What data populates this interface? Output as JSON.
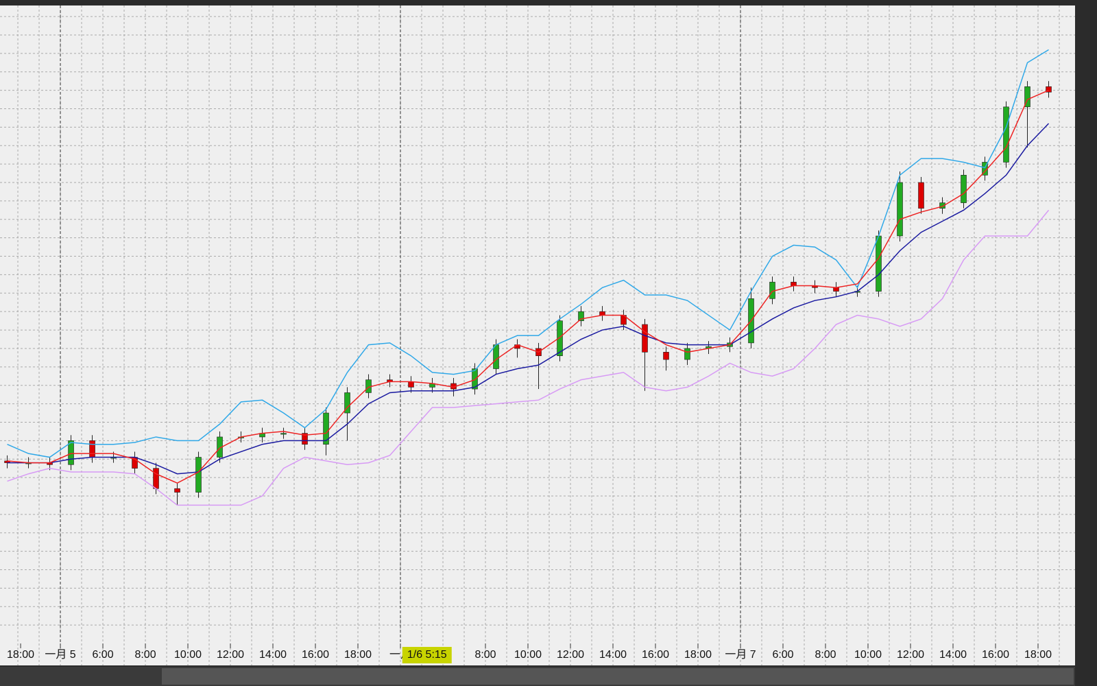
{
  "chart_data": {
    "type": "candlestick",
    "x": [
      -2.5,
      -1.5,
      -0.5,
      0.5,
      1.5,
      2.5,
      3.5,
      4.5,
      5.5,
      6.5,
      7.5,
      8.5,
      9.5,
      10.5,
      11.5,
      12.5,
      13.5,
      14.5,
      15.5,
      16.5,
      17.5,
      18.5,
      19.5,
      20.5,
      21.5,
      22.5,
      23.5,
      24.5,
      25.5,
      26.5,
      27.5,
      28.5,
      29.5,
      30.5,
      31.5,
      32.5,
      33.5,
      34.5,
      35.5,
      36.5,
      37.5,
      38.5,
      39.5,
      40.5,
      41.5,
      42.5,
      43.5,
      44.5,
      45.5,
      46.5
    ],
    "open": [
      9.9,
      9.8,
      9.8,
      9.7,
      11.0,
      10.1,
      10.1,
      9.5,
      8.4,
      8.2,
      10.1,
      11.2,
      11.2,
      11.4,
      11.4,
      10.8,
      12.5,
      13.6,
      14.3,
      14.2,
      13.9,
      14.1,
      13.8,
      14.9,
      16.2,
      16.0,
      15.6,
      17.5,
      18.0,
      17.8,
      17.3,
      15.8,
      15.4,
      16.0,
      16.1,
      16.3,
      18.7,
      19.6,
      19.4,
      19.3,
      19.1,
      19.1,
      22.1,
      25.0,
      23.6,
      23.9,
      25.4,
      26.1,
      29.1,
      30.2
    ],
    "high": [
      10.2,
      10.1,
      10.1,
      11.3,
      11.3,
      10.4,
      10.4,
      9.8,
      8.7,
      10.4,
      11.5,
      11.5,
      11.7,
      11.7,
      11.7,
      12.8,
      13.9,
      14.6,
      14.6,
      14.5,
      14.4,
      14.4,
      15.2,
      16.5,
      16.5,
      16.3,
      17.8,
      18.3,
      18.3,
      18.1,
      17.6,
      16.1,
      16.3,
      16.4,
      16.6,
      19.3,
      19.9,
      19.9,
      19.7,
      19.6,
      19.4,
      22.4,
      25.6,
      25.3,
      24.2,
      25.7,
      26.4,
      29.4,
      30.5,
      30.5
    ],
    "low": [
      9.5,
      9.5,
      9.4,
      9.4,
      9.8,
      9.8,
      9.2,
      8.1,
      7.5,
      7.9,
      9.8,
      10.9,
      10.9,
      11.1,
      10.5,
      10.2,
      11.0,
      13.3,
      13.9,
      13.6,
      13.6,
      13.4,
      13.5,
      14.6,
      15.5,
      13.8,
      15.3,
      17.2,
      17.5,
      17.0,
      13.7,
      14.8,
      15.1,
      15.7,
      15.8,
      16.0,
      18.4,
      19.1,
      19.0,
      18.8,
      18.8,
      18.8,
      21.8,
      23.3,
      23.3,
      23.6,
      25.1,
      25.8,
      26.9,
      29.6
    ],
    "close": [
      9.8,
      9.8,
      9.7,
      11.0,
      10.1,
      10.1,
      9.5,
      8.4,
      8.2,
      10.1,
      11.2,
      11.2,
      11.4,
      11.4,
      10.8,
      12.5,
      13.6,
      14.3,
      14.2,
      13.9,
      14.1,
      13.8,
      14.9,
      16.2,
      16.0,
      15.6,
      17.5,
      18.0,
      17.8,
      17.3,
      15.8,
      15.4,
      16.0,
      16.1,
      16.3,
      18.7,
      19.6,
      19.4,
      19.3,
      19.1,
      19.1,
      22.1,
      25.0,
      23.6,
      23.9,
      25.4,
      26.1,
      29.1,
      30.2,
      29.9
    ],
    "up_color": "#22aa22",
    "down_color": "#dd0000",
    "lines": [
      {
        "color": "#2fa8e8",
        "values": [
          10.8,
          10.3,
          10.1,
          10.9,
          10.8,
          10.8,
          10.9,
          11.2,
          11.0,
          11.0,
          11.9,
          13.1,
          13.2,
          12.5,
          11.7,
          12.7,
          14.7,
          16.2,
          16.3,
          15.6,
          14.7,
          14.6,
          14.8,
          16.2,
          16.7,
          16.7,
          17.6,
          18.4,
          19.3,
          19.7,
          18.9,
          18.9,
          18.6,
          17.8,
          17.0,
          19.1,
          21.0,
          21.6,
          21.5,
          20.8,
          19.3,
          22.1,
          25.4,
          26.3,
          26.3,
          26.1,
          25.8,
          28.0,
          31.5,
          32.2
        ]
      },
      {
        "color": "#d79af5",
        "values": [
          8.8,
          9.2,
          9.5,
          9.3,
          9.3,
          9.3,
          9.2,
          8.4,
          7.5,
          7.5,
          7.5,
          7.5,
          8.0,
          9.5,
          10.1,
          9.9,
          9.7,
          9.8,
          10.2,
          11.5,
          12.8,
          12.8,
          12.9,
          13.0,
          13.1,
          13.2,
          13.8,
          14.3,
          14.5,
          14.7,
          13.9,
          13.7,
          13.9,
          14.5,
          15.2,
          14.7,
          14.5,
          14.9,
          16.0,
          17.3,
          17.8,
          17.6,
          17.2,
          17.6,
          18.7,
          20.8,
          22.1,
          22.1,
          22.1,
          23.5
        ]
      },
      {
        "color": "#1a1aa0",
        "values": [
          9.8,
          9.8,
          9.8,
          10.0,
          10.1,
          10.1,
          10.1,
          9.7,
          9.2,
          9.3,
          10.0,
          10.4,
          10.8,
          11.0,
          11.0,
          11.0,
          11.9,
          13.0,
          13.6,
          13.7,
          13.7,
          13.7,
          13.9,
          14.6,
          14.9,
          15.1,
          15.8,
          16.5,
          17.0,
          17.2,
          16.7,
          16.3,
          16.2,
          16.2,
          16.2,
          16.9,
          17.6,
          18.2,
          18.6,
          18.8,
          19.1,
          20.0,
          21.3,
          22.3,
          22.9,
          23.5,
          24.4,
          25.4,
          27.0,
          28.2
        ]
      },
      {
        "color": "#ee2222",
        "values": [
          9.9,
          9.8,
          9.8,
          10.3,
          10.3,
          10.3,
          10.0,
          9.2,
          8.7,
          9.3,
          10.6,
          11.2,
          11.4,
          11.5,
          11.3,
          11.4,
          12.8,
          13.9,
          14.2,
          14.2,
          14.1,
          13.9,
          14.3,
          15.4,
          16.2,
          15.8,
          16.6,
          17.6,
          17.8,
          17.8,
          16.9,
          16.2,
          15.8,
          16.0,
          16.2,
          17.5,
          19.1,
          19.4,
          19.4,
          19.3,
          19.5,
          20.9,
          23.0,
          23.4,
          23.7,
          24.4,
          25.6,
          26.9,
          29.5,
          30.0
        ]
      }
    ],
    "xlim": [
      -2.84,
      47
    ],
    "ylim": [
      0,
      34.6
    ],
    "grid": true,
    "xticks": [
      {
        "value": -1.87,
        "label": "18:00"
      },
      {
        "value": 0,
        "label": "一月 5"
      },
      {
        "value": 2,
        "label": "6:00"
      },
      {
        "value": 4,
        "label": "8:00"
      },
      {
        "value": 6,
        "label": "10:00"
      },
      {
        "value": 8,
        "label": "12:00"
      },
      {
        "value": 10,
        "label": "14:00"
      },
      {
        "value": 12,
        "label": "16:00"
      },
      {
        "value": 14,
        "label": "18:00"
      },
      {
        "value": 16,
        "label": "一月"
      },
      {
        "value": 20,
        "label": "8:00"
      },
      {
        "value": 22,
        "label": "10:00"
      },
      {
        "value": 24,
        "label": "12:00"
      },
      {
        "value": 26,
        "label": "14:00"
      },
      {
        "value": 28,
        "label": "16:00"
      },
      {
        "value": 30,
        "label": "18:00"
      },
      {
        "value": 32,
        "label": "一月 7"
      },
      {
        "value": 34,
        "label": "6:00"
      },
      {
        "value": 36,
        "label": "8:00"
      },
      {
        "value": 38,
        "label": "10:00"
      },
      {
        "value": 40,
        "label": "12:00"
      },
      {
        "value": 42,
        "label": "14:00"
      },
      {
        "value": 44,
        "label": "16:00"
      },
      {
        "value": 46,
        "label": "18:00"
      }
    ],
    "day_separators": [
      0,
      16,
      32
    ],
    "crosshair": {
      "value": 17.25,
      "label": "1/6 5:15"
    }
  }
}
